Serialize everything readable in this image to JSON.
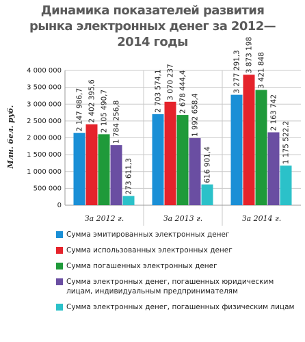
{
  "chart_data": {
    "type": "bar",
    "title": "Динамика показателей развития рынка электронных денег за 2012—2014 годы",
    "y_label": "Млн. бел. руб.",
    "categories": [
      "За 2012 г.",
      "За 2013 г.",
      "За 2014 г."
    ],
    "ylim": [
      0,
      4000000
    ],
    "yticks": [
      0,
      {
        "value": 500000,
        "label": "500 000"
      },
      {
        "value": 1000000,
        "label": "1 000 000"
      },
      {
        "value": 1500000,
        "label": "1 500 000"
      },
      {
        "value": 2000000,
        "label": "2 000 000"
      },
      {
        "value": 2500000,
        "label": "2 500 000"
      },
      {
        "value": 3000000,
        "label": "3 000 000"
      },
      {
        "value": 3500000,
        "label": "3 500 000"
      },
      {
        "value": 4000000,
        "label": "4 000 000"
      }
    ],
    "grid": true,
    "series": [
      {
        "name": "Сумма эмитированных электронных денег",
        "color": "#1a8fd6",
        "values": [
          2147986.7,
          2703574.1,
          3277291.3
        ],
        "value_labels": [
          "2 147 986,7",
          "2 703 574,1",
          "3 277 291,3"
        ]
      },
      {
        "name": "Сумма использованных электронных денег",
        "color": "#e5232b",
        "values": [
          2402395.6,
          3070237,
          3873198
        ],
        "value_labels": [
          "2 402 395,6",
          "3 070 237",
          "3 873 198"
        ]
      },
      {
        "name": "Сумма погашенных электронных денег",
        "color": "#1f9a3a",
        "values": [
          2105490.7,
          2678444.4,
          3421848
        ],
        "value_labels": [
          "2 105 490,7",
          "2 678 444,4",
          "3 421 848"
        ]
      },
      {
        "name": "Сумма электронных денег, погашенных юридическим лицам, индивидуальным предпринимателям",
        "color": "#6a4ea2",
        "values": [
          1784256.8,
          1992658.4,
          2163742
        ],
        "value_labels": [
          "1 784 256,8",
          "1 992 658,4",
          "2 163 742"
        ]
      },
      {
        "name": "Сумма электронных денег, погашенных физическим лицам",
        "color": "#2bc1c9",
        "values": [
          273611.3,
          616901.4,
          1175522.2
        ],
        "value_labels": [
          "273 611,3",
          "616 901,4",
          "1 175 522,2"
        ]
      }
    ]
  }
}
